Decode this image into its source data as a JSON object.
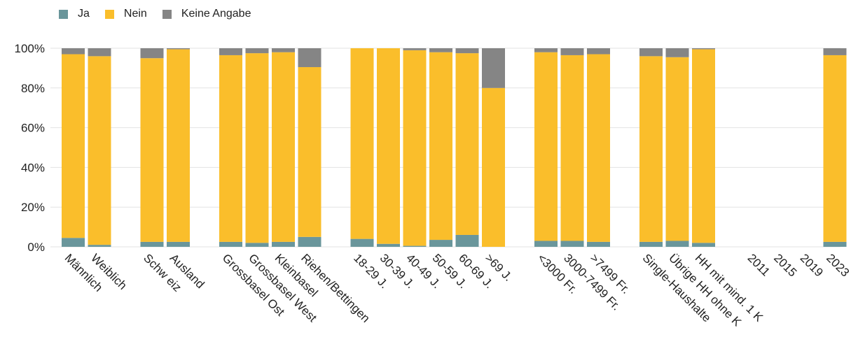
{
  "chart_data": {
    "type": "bar",
    "stacked": true,
    "title": "",
    "xlabel": "",
    "ylabel": "",
    "ylim": [
      0,
      100
    ],
    "y_ticks": [
      "0%",
      "20%",
      "40%",
      "60%",
      "80%",
      "100%"
    ],
    "grid": true,
    "legend_position": "top-left",
    "colors": {
      "Ja": "#6a969b",
      "Nein": "#fabe2b",
      "Keine Angabe": "#858585"
    },
    "series": [
      {
        "name": "Ja",
        "values": [
          4.5,
          1.0,
          2.5,
          2.5,
          2.5,
          2.0,
          2.5,
          5.0,
          4.0,
          1.5,
          0.5,
          3.5,
          6.0,
          0.0,
          3.0,
          3.0,
          2.5,
          2.5,
          3.0,
          2.0,
          null,
          null,
          null,
          2.5
        ]
      },
      {
        "name": "Nein",
        "values": [
          92.5,
          95.0,
          92.5,
          97.0,
          94.0,
          95.5,
          95.5,
          85.5,
          96.0,
          98.5,
          98.5,
          94.5,
          91.5,
          80.0,
          95.0,
          93.5,
          94.5,
          93.5,
          92.5,
          97.5,
          null,
          null,
          null,
          94.0
        ]
      },
      {
        "name": "Keine Angabe",
        "values": [
          3.0,
          4.0,
          5.0,
          0.5,
          3.5,
          2.5,
          2.0,
          9.5,
          0.0,
          0.0,
          1.0,
          2.0,
          2.5,
          20.0,
          2.0,
          3.5,
          3.0,
          4.0,
          4.5,
          0.5,
          null,
          null,
          null,
          3.5
        ]
      }
    ],
    "categories": [
      "Männlich",
      "Weiblich",
      "Schw eiz",
      "Ausland",
      "Grossbasel Ost",
      "Grossbasel West",
      "Kleinbasel",
      "Riehen/Bettingen",
      "18-29 J.",
      "30-39 J.",
      "40-49 J.",
      "50-59 J.",
      "60-69 J.",
      ">69 J.",
      "<3000 Fr.",
      "3000-7499 Fr.",
      ">7499 Fr.",
      "Single-Haushalte",
      "Übrige HH ohne K",
      "HH mit mind. 1 K",
      "2011",
      "2015",
      "2019",
      "2023"
    ]
  }
}
